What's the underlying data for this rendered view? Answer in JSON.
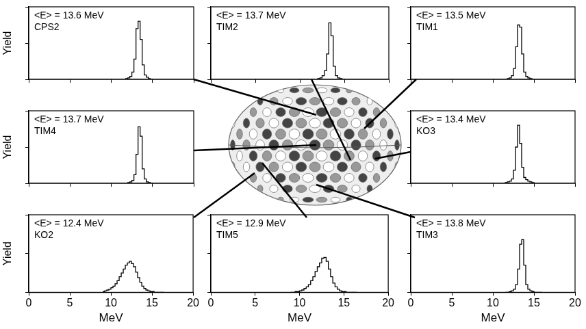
{
  "chart_data": [
    {
      "type": "histogram",
      "title": "<E> = 13.6 MeV",
      "subtitle": "CPS2",
      "y_label": "Yield",
      "bins": [
        11.5,
        11.75,
        12,
        12.25,
        12.5,
        12.75,
        13,
        13.25,
        13.5,
        13.75,
        14,
        14.25,
        14.5,
        14.75,
        15,
        15.25,
        15.5,
        15.75,
        16
      ],
      "counts": [
        0,
        0,
        1,
        2,
        4,
        10,
        28,
        70,
        80,
        55,
        20,
        6,
        3,
        1,
        0,
        0,
        0,
        0
      ],
      "color": "#000000",
      "xlim": [
        0,
        20
      ],
      "xticks": [
        0,
        5,
        10,
        15,
        20
      ],
      "ylim": [
        0,
        100
      ],
      "yticks": [
        0,
        50,
        100
      ],
      "grid": false,
      "tick_labels": false
    },
    {
      "type": "histogram",
      "title": "<E> = 13.7 MeV",
      "subtitle": "TIM2",
      "bins": [
        11.5,
        11.75,
        12,
        12.25,
        12.5,
        12.75,
        13,
        13.25,
        13.5,
        13.75,
        14,
        14.25,
        14.5,
        14.75,
        15,
        15.25,
        15.5,
        15.75,
        16
      ],
      "counts": [
        0,
        0,
        0,
        1,
        2,
        5,
        12,
        35,
        78,
        60,
        18,
        5,
        2,
        1,
        0,
        0,
        0,
        0
      ],
      "color": "#000000",
      "xlim": [
        0,
        20
      ],
      "xticks": [
        0,
        5,
        10,
        15,
        20
      ],
      "ylim": [
        0,
        100
      ],
      "yticks": [
        0,
        50,
        100
      ],
      "grid": false,
      "tick_labels": false
    },
    {
      "type": "histogram",
      "title": "<E> = 13.5 MeV",
      "subtitle": "TIM1",
      "bins": [
        11.5,
        11.75,
        12,
        12.25,
        12.5,
        12.75,
        13,
        13.25,
        13.5,
        13.75,
        14,
        14.25,
        14.5,
        14.75,
        15,
        15.25,
        15.5,
        15.75,
        16
      ],
      "counts": [
        0,
        0,
        1,
        2,
        5,
        15,
        45,
        75,
        72,
        35,
        10,
        4,
        2,
        1,
        0,
        0,
        0,
        0
      ],
      "color": "#000000",
      "xlim": [
        0,
        20
      ],
      "xticks": [
        0,
        5,
        10,
        15,
        20
      ],
      "ylim": [
        0,
        100
      ],
      "yticks": [
        0,
        50,
        100
      ],
      "grid": false,
      "tick_labels": false
    },
    {
      "type": "histogram",
      "title": "<E> = 13.7 MeV",
      "subtitle": "TIM4",
      "y_label": "Yield",
      "bins": [
        11.5,
        11.75,
        12,
        12.25,
        12.5,
        12.75,
        13,
        13.25,
        13.5,
        13.75,
        14,
        14.25,
        14.5,
        14.75,
        15,
        15.25,
        15.5,
        15.75,
        16
      ],
      "counts": [
        0,
        0,
        0,
        1,
        2,
        4,
        12,
        40,
        78,
        65,
        20,
        6,
        2,
        1,
        0,
        0,
        0,
        0
      ],
      "color": "#000000",
      "xlim": [
        0,
        20
      ],
      "xticks": [
        0,
        5,
        10,
        15,
        20
      ],
      "ylim": [
        0,
        100
      ],
      "yticks": [
        0,
        50,
        100
      ],
      "grid": false,
      "tick_labels": false
    },
    {
      "type": "histogram",
      "title": "<E> = 13.4 MeV",
      "subtitle": "KO3",
      "bins": [
        11.5,
        11.75,
        12,
        12.25,
        12.5,
        12.75,
        13,
        13.25,
        13.5,
        13.75,
        14,
        14.25,
        14.5,
        14.75,
        15,
        15.25,
        15.5,
        15.75,
        16
      ],
      "counts": [
        0,
        1,
        2,
        3,
        6,
        18,
        50,
        80,
        55,
        22,
        8,
        5,
        3,
        2,
        1,
        0,
        0,
        0
      ],
      "color": "#000000",
      "xlim": [
        0,
        20
      ],
      "xticks": [
        0,
        5,
        10,
        15,
        20
      ],
      "ylim": [
        0,
        100
      ],
      "yticks": [
        0,
        50,
        100
      ],
      "grid": false,
      "tick_labels": false
    },
    {
      "type": "histogram",
      "title": "<E> = 12.4 MeV",
      "subtitle": "KO2",
      "x_label": "MeV",
      "y_label": "Yield",
      "bins": [
        9,
        9.25,
        9.5,
        9.75,
        10,
        10.25,
        10.5,
        10.75,
        11,
        11.25,
        11.5,
        11.75,
        12,
        12.25,
        12.5,
        12.75,
        13,
        13.25,
        13.5,
        13.75,
        14,
        14.25,
        14.5,
        14.75,
        15,
        15.25,
        15.5,
        15.75,
        16,
        16.25,
        16.5
      ],
      "counts": [
        1,
        1,
        2,
        3,
        4,
        6,
        8,
        11,
        15,
        20,
        25,
        30,
        35,
        38,
        40,
        37,
        33,
        26,
        19,
        13,
        8,
        5,
        3,
        2,
        1,
        1,
        0,
        0,
        0,
        0
      ],
      "color": "#000000",
      "xlim": [
        0,
        20
      ],
      "xticks": [
        0,
        5,
        10,
        15,
        20
      ],
      "ylim": [
        0,
        100
      ],
      "yticks": [
        0,
        50,
        100
      ],
      "grid": false,
      "tick_labels": "x"
    },
    {
      "type": "histogram",
      "title": "<E> = 12.9 MeV",
      "subtitle": "TIM5",
      "x_label": "MeV",
      "bins": [
        9,
        9.25,
        9.5,
        9.75,
        10,
        10.25,
        10.5,
        10.75,
        11,
        11.25,
        11.5,
        11.75,
        12,
        12.25,
        12.5,
        12.75,
        13,
        13.25,
        13.5,
        13.75,
        14,
        14.25,
        14.5,
        14.75,
        15,
        15.25,
        15.5,
        15.75,
        16,
        16.25,
        16.5
      ],
      "counts": [
        0,
        0,
        0,
        1,
        1,
        2,
        3,
        5,
        7,
        10,
        15,
        20,
        27,
        33,
        38,
        44,
        45,
        40,
        30,
        20,
        12,
        7,
        4,
        2,
        1,
        1,
        0,
        0,
        0,
        0
      ],
      "color": "#000000",
      "xlim": [
        0,
        20
      ],
      "xticks": [
        0,
        5,
        10,
        15,
        20
      ],
      "ylim": [
        0,
        100
      ],
      "yticks": [
        0,
        50,
        100
      ],
      "grid": false,
      "tick_labels": "x"
    },
    {
      "type": "histogram",
      "title": "<E> = 13.8 MeV",
      "subtitle": "TIM3",
      "x_label": "MeV",
      "bins": [
        11.5,
        11.75,
        12,
        12.25,
        12.5,
        12.75,
        13,
        13.25,
        13.5,
        13.75,
        14,
        14.25,
        14.5,
        14.75,
        15,
        15.25,
        15.5,
        15.75,
        16
      ],
      "counts": [
        0,
        0,
        0,
        1,
        2,
        4,
        10,
        30,
        62,
        68,
        35,
        10,
        4,
        2,
        1,
        0,
        0,
        0
      ],
      "color": "#000000",
      "xlim": [
        0,
        20
      ],
      "xticks": [
        0,
        5,
        10,
        15,
        20
      ],
      "ylim": [
        0,
        100
      ],
      "yticks": [
        0,
        50,
        100
      ],
      "grid": false,
      "tick_labels": "x"
    }
  ]
}
